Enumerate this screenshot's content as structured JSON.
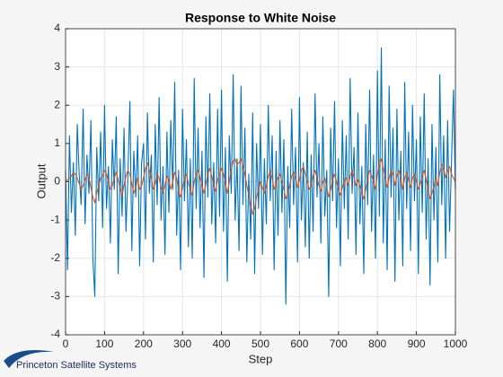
{
  "chart_data": {
    "type": "line",
    "title": "Response to White Noise",
    "xlabel": "Step",
    "ylabel": "Output",
    "x": [
      0,
      5,
      10,
      15,
      20,
      25,
      30,
      35,
      40,
      45,
      50,
      55,
      60,
      65,
      70,
      75,
      80,
      85,
      90,
      95,
      100,
      105,
      110,
      115,
      120,
      125,
      130,
      135,
      140,
      145,
      150,
      155,
      160,
      165,
      170,
      175,
      180,
      185,
      190,
      195,
      200,
      205,
      210,
      215,
      220,
      225,
      230,
      235,
      240,
      245,
      250,
      255,
      260,
      265,
      270,
      275,
      280,
      285,
      290,
      295,
      300,
      305,
      310,
      315,
      320,
      325,
      330,
      335,
      340,
      345,
      350,
      355,
      360,
      365,
      370,
      375,
      380,
      385,
      390,
      395,
      400,
      405,
      410,
      415,
      420,
      425,
      430,
      435,
      440,
      445,
      450,
      455,
      460,
      465,
      470,
      475,
      480,
      485,
      490,
      495,
      500,
      505,
      510,
      515,
      520,
      525,
      530,
      535,
      540,
      545,
      550,
      555,
      560,
      565,
      570,
      575,
      580,
      585,
      590,
      595,
      600,
      605,
      610,
      615,
      620,
      625,
      630,
      635,
      640,
      645,
      650,
      655,
      660,
      665,
      670,
      675,
      680,
      685,
      690,
      695,
      700,
      705,
      710,
      715,
      720,
      725,
      730,
      735,
      740,
      745,
      750,
      755,
      760,
      765,
      770,
      775,
      780,
      785,
      790,
      795,
      800,
      805,
      810,
      815,
      820,
      825,
      830,
      835,
      840,
      845,
      850,
      855,
      860,
      865,
      870,
      875,
      880,
      885,
      890,
      895,
      900,
      905,
      910,
      915,
      920,
      925,
      930,
      935,
      940,
      945,
      950,
      955,
      960,
      965,
      970,
      975,
      980,
      985,
      990,
      995,
      1000
    ],
    "series": [
      {
        "color": "#0072bd",
        "values": [
          0.3,
          -2.3,
          1.2,
          -0.8,
          0.5,
          -1.4,
          1.5,
          0.2,
          -0.6,
          1.9,
          -1.1,
          0.7,
          -0.3,
          1.6,
          -2.0,
          -3.0,
          0.9,
          -0.5,
          1.3,
          -1.2,
          2.0,
          -0.7,
          0.4,
          -1.6,
          1.1,
          -0.2,
          1.7,
          -2.4,
          0.6,
          -0.9,
          1.4,
          -1.3,
          0.2,
          2.1,
          -1.8,
          0.8,
          -0.4,
          1.2,
          -2.2,
          0.5,
          1.0,
          -1.5,
          1.8,
          -0.3,
          0.7,
          -2.1,
          1.5,
          -0.6,
          2.2,
          -1.0,
          0.4,
          -1.9,
          1.3,
          -0.8,
          1.6,
          -0.2,
          2.6,
          -1.4,
          0.3,
          -2.3,
          1.9,
          -0.5,
          1.1,
          -1.7,
          0.6,
          -2.0,
          2.7,
          -0.7,
          1.4,
          -1.2,
          0.8,
          -2.5,
          1.7,
          -0.4,
          2.3,
          -1.1,
          0.5,
          -1.6,
          1.9,
          -0.9,
          2.4,
          -1.3,
          0.9,
          -2.6,
          1.2,
          -0.3,
          2.8,
          -1.0,
          0.6,
          -1.8,
          2.5,
          -0.6,
          1.4,
          -2.1,
          0.2,
          -1.5,
          1.8,
          -2.4,
          1.0,
          -0.7,
          1.5,
          -1.9,
          0.6,
          -1.1,
          2.0,
          -0.5,
          1.2,
          -2.3,
          0.8,
          -1.4,
          1.6,
          -0.8,
          1.1,
          -3.2,
          0.4,
          -1.2,
          1.9,
          -0.6,
          0.9,
          -2.1,
          2.2,
          -1.0,
          0.5,
          -1.7,
          1.3,
          -2.0,
          0.7,
          -1.3,
          2.3,
          -0.4,
          1.0,
          -1.6,
          1.7,
          -0.9,
          0.3,
          -3.0,
          1.4,
          -0.5,
          2.1,
          -1.2,
          0.6,
          -2.2,
          1.6,
          -0.7,
          1.2,
          -1.5,
          2.7,
          -0.3,
          0.9,
          -1.9,
          1.8,
          -1.1,
          0.4,
          -2.4,
          1.5,
          -0.6,
          2.4,
          -1.3,
          0.7,
          -2.0,
          2.9,
          -0.9,
          3.5,
          -1.6,
          1.1,
          -2.3,
          2.5,
          -0.4,
          1.4,
          -2.6,
          1.9,
          -1.0,
          0.8,
          -2.2,
          2.6,
          -0.7,
          1.3,
          -1.8,
          2.0,
          -0.5,
          1.1,
          -2.4,
          1.7,
          -0.8,
          2.3,
          -1.5,
          0.6,
          -2.7,
          1.5,
          -1.0,
          0.9,
          -2.1,
          2.8,
          -0.6,
          1.2,
          -2.0,
          1.6,
          -1.3,
          0.5,
          2.4,
          -0.2
        ]
      },
      {
        "color": "#d95319",
        "values": [
          0,
          0.05,
          0.1,
          0.15,
          0.25,
          0.2,
          0.1,
          -0.05,
          -0.2,
          -0.1,
          0.05,
          0.2,
          0.1,
          -0.15,
          -0.4,
          -0.55,
          -0.3,
          -0.1,
          0.1,
          0.15,
          0.3,
          0.2,
          0.0,
          -0.2,
          -0.1,
          0.1,
          0.25,
          0.05,
          -0.2,
          -0.35,
          -0.1,
          0.15,
          0.3,
          0.2,
          -0.05,
          -0.3,
          -0.15,
          0.1,
          -0.2,
          -0.1,
          0.1,
          0.35,
          0.5,
          0.3,
          0.1,
          -0.2,
          -0.05,
          0.2,
          0.1,
          -0.15,
          -0.3,
          -0.1,
          0.15,
          0.05,
          -0.2,
          0.0,
          0.25,
          0.1,
          -0.25,
          -0.4,
          -0.15,
          0.1,
          0.2,
          -0.05,
          -0.2,
          -0.35,
          0.0,
          0.2,
          0.3,
          0.1,
          -0.1,
          -0.3,
          -0.05,
          0.2,
          0.35,
          0.15,
          -0.1,
          -0.25,
          0.05,
          0.2,
          0.35,
          0.2,
          -0.05,
          -0.3,
          0.0,
          0.3,
          0.55,
          0.6,
          0.45,
          0.5,
          0.6,
          0.4,
          0.2,
          -0.1,
          -0.35,
          -0.6,
          -0.85,
          -0.7,
          -0.4,
          -0.2,
          0.0,
          -0.15,
          -0.3,
          -0.1,
          0.15,
          0.3,
          0.1,
          -0.2,
          -0.05,
          0.1,
          0.2,
          0.0,
          -0.2,
          -0.45,
          -0.3,
          -0.1,
          0.15,
          0.25,
          0.1,
          -0.15,
          0.05,
          0.3,
          0.4,
          0.2,
          0.0,
          -0.2,
          -0.1,
          0.15,
          0.3,
          0.1,
          -0.1,
          -0.25,
          0.0,
          0.1,
          -0.15,
          -0.4,
          -0.2,
          0.05,
          0.2,
          0.0,
          -0.2,
          -0.35,
          -0.15,
          0.05,
          0.1,
          -0.1,
          0.15,
          0.3,
          0.15,
          -0.1,
          0.05,
          -0.1,
          -0.3,
          -0.45,
          -0.2,
          0.1,
          0.3,
          0.15,
          0.0,
          -0.2,
          0.2,
          0.45,
          0.6,
          0.35,
          0.1,
          -0.15,
          0.1,
          0.3,
          0.2,
          -0.1,
          0.15,
          0.3,
          0.1,
          -0.2,
          0.1,
          0.25,
          0.05,
          -0.15,
          0.1,
          0.2,
          0.0,
          -0.2,
          -0.05,
          0.15,
          0.3,
          0.05,
          -0.2,
          -0.45,
          -0.3,
          -0.1,
          0.1,
          -0.1,
          0.25,
          0.45,
          0.35,
          0.1,
          0.3,
          0.4,
          0.2,
          0.1,
          0.0
        ]
      }
    ],
    "xlim": [
      0,
      1000
    ],
    "xticks": [
      0,
      100,
      200,
      300,
      400,
      500,
      600,
      700,
      800,
      900,
      1000
    ],
    "ylim": [
      -4,
      4
    ],
    "yticks": [
      -4,
      -3,
      -2,
      -1,
      0,
      1,
      2,
      3,
      4
    ],
    "grid": true
  },
  "logo": "Princeton Satellite Systems"
}
